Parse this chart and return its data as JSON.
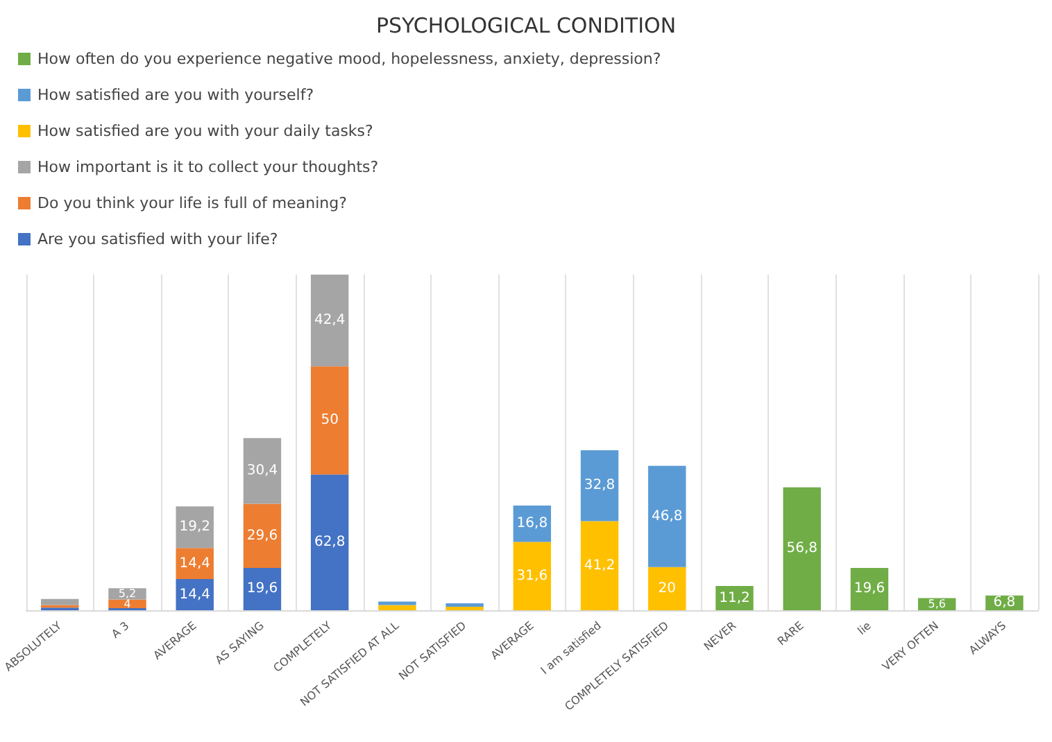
{
  "chart_data": {
    "type": "bar",
    "title": "PSYCHOLOGICAL CONDITION",
    "stacked": true,
    "grid": "x",
    "legend": "top left",
    "categories": [
      "ABSOLUTELY",
      "A 3",
      "AVERAGE",
      "AS SAYING",
      "COMPLETELY",
      "NOT SATISFIED AT ALL",
      "NOT SATISFIED",
      "AVERAGE",
      "I am satisfied",
      "COMPLETELY SATISFIED",
      "NEVER",
      "RARE",
      "lie",
      "VERY OFTEN",
      "ALWAYS"
    ],
    "series": [
      {
        "name": "Are you satisfied with your life?",
        "color": "#4472c4",
        "values": [
          1.2,
          1,
          14.4,
          19.6,
          62.8,
          null,
          null,
          null,
          null,
          null,
          null,
          null,
          null,
          null,
          null
        ],
        "value_labels": [
          null,
          null,
          "14,4",
          "19,6",
          "62,8",
          null,
          null,
          null,
          null,
          null,
          null,
          null,
          null,
          null,
          null
        ]
      },
      {
        "name": "Do you think your life is full of meaning?",
        "color": "#ed7d31",
        "values": [
          1.2,
          4,
          14.4,
          29.6,
          50,
          null,
          null,
          null,
          null,
          null,
          null,
          null,
          null,
          null,
          null
        ],
        "value_labels": [
          null,
          "4",
          "14,4",
          "29,6",
          "50",
          null,
          null,
          null,
          null,
          null,
          null,
          null,
          null,
          null,
          null
        ]
      },
      {
        "name": "How important is it to collect your thoughts?",
        "color": "#a5a5a5",
        "values": [
          2.8,
          5.2,
          19.2,
          30.4,
          42.4,
          null,
          null,
          null,
          null,
          null,
          null,
          null,
          null,
          null,
          null
        ],
        "value_labels": [
          null,
          "5,2",
          "19,2",
          "30,4",
          "42,4",
          null,
          null,
          null,
          null,
          null,
          null,
          null,
          null,
          null,
          null
        ]
      },
      {
        "name": "How satisfied are you with your daily tasks?",
        "color": "#ffc000",
        "values": [
          null,
          null,
          null,
          null,
          null,
          2.4,
          1.6,
          31.6,
          41.2,
          20,
          null,
          null,
          null,
          null,
          null
        ],
        "value_labels": [
          null,
          null,
          null,
          null,
          null,
          null,
          null,
          "31,6",
          "41,2",
          "20",
          null,
          null,
          null,
          null,
          null
        ]
      },
      {
        "name": "How satisfied are you with yourself?",
        "color": "#5b9bd5",
        "values": [
          null,
          null,
          null,
          null,
          null,
          1.6,
          1.6,
          16.8,
          32.8,
          46.8,
          null,
          null,
          null,
          null,
          null
        ],
        "value_labels": [
          null,
          null,
          null,
          null,
          null,
          null,
          null,
          "16,8",
          "32,8",
          "46,8",
          null,
          null,
          null,
          null,
          null
        ]
      },
      {
        "name": "How often do you experience negative mood, hopelessness, anxiety, depression?",
        "color": "#70ad47",
        "values": [
          null,
          null,
          null,
          null,
          null,
          null,
          null,
          null,
          null,
          null,
          11.2,
          56.8,
          19.6,
          5.6,
          6.8
        ],
        "value_labels": [
          null,
          null,
          null,
          null,
          null,
          null,
          null,
          null,
          null,
          null,
          "11,2",
          "56,8",
          "19,6",
          "5,6",
          "6,8"
        ]
      }
    ]
  }
}
